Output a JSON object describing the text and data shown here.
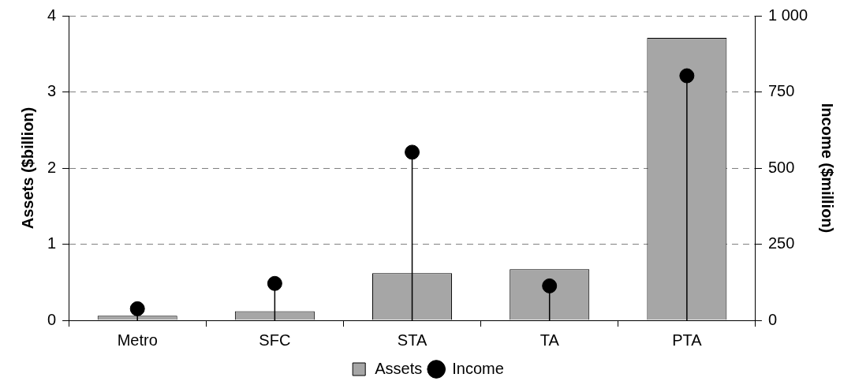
{
  "chart_data": {
    "type": "bar",
    "categories": [
      "Metro",
      "SFC",
      "STA",
      "TA",
      "PTA"
    ],
    "ylabel": "Assets ($billion)",
    "y2label": "Income ($million)",
    "series": [
      {
        "name": "Assets",
        "color": "#a6a6a6",
        "values": [
          0.06,
          0.12,
          0.62,
          0.67,
          3.71
        ]
      },
      {
        "name": "Income",
        "type": "lollipop",
        "axis": "y2",
        "color": "#000000",
        "marker": "circle",
        "values": [
          38,
          121,
          552,
          113,
          803
        ]
      }
    ],
    "ylim": [
      0,
      4
    ],
    "yticks": [
      0,
      1,
      2,
      3,
      4
    ],
    "y2lim": [
      0,
      1000
    ],
    "y2ticks": [
      0,
      250,
      500,
      750,
      {
        "value": 1000,
        "label": "1 000"
      }
    ],
    "grid": "y",
    "legend": "bottom"
  }
}
